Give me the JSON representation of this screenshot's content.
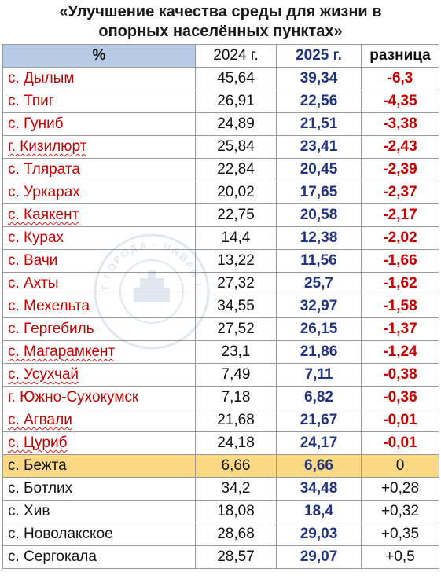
{
  "title_line1": "«Улучшение качества среды для жизни в",
  "title_line2": "опорных населённых пунктах»",
  "header": {
    "col_percent": "%",
    "col_2024": "2024 г.",
    "col_2025": "2025 г.",
    "col_diff": "разница"
  },
  "watermark_text": "ИНСТИТУТ ГОРОДА · URBAN INSTITUTE",
  "rows": [
    {
      "name": "с. Дылым",
      "v2024": "45,64",
      "v2025": "39,34",
      "diff": "-6,3"
    },
    {
      "name": "с. Тпиг",
      "v2024": "26,91",
      "v2025": "22,56",
      "diff": "-4,35"
    },
    {
      "name": "с. Гуниб",
      "v2024": "24,89",
      "v2025": "21,51",
      "diff": "-3,38"
    },
    {
      "name": "г. Кизилюрт",
      "v2024": "25,84",
      "v2025": "23,41",
      "diff": "-2,43"
    },
    {
      "name": "с. Тлярата",
      "v2024": "22,84",
      "v2025": "20,45",
      "diff": "-2,39"
    },
    {
      "name": "с. Уркарах",
      "v2024": "20,02",
      "v2025": "17,65",
      "diff": "-2,37"
    },
    {
      "name": "с. Каякент",
      "v2024": "22,75",
      "v2025": "20,58",
      "diff": "-2,17"
    },
    {
      "name": "с. Курах",
      "v2024": "14,4",
      "v2025": "12,38",
      "diff": "-2,02"
    },
    {
      "name": "с. Вачи",
      "v2024": "13,22",
      "v2025": "11,56",
      "diff": "-1,66"
    },
    {
      "name": "с. Ахты",
      "v2024": "27,32",
      "v2025": "25,7",
      "diff": "-1,62"
    },
    {
      "name": "с. Мехельта",
      "v2024": "34,55",
      "v2025": "32,97",
      "diff": "-1,58"
    },
    {
      "name": "с. Гергебиль",
      "v2024": "27,52",
      "v2025": "26,15",
      "diff": "-1,37"
    },
    {
      "name": "с. Магарамкент",
      "v2024": "23,1",
      "v2025": "21,86",
      "diff": "-1,24"
    },
    {
      "name": "с. Усухчай",
      "v2024": "7,49",
      "v2025": "7,11",
      "diff": "-0,38"
    },
    {
      "name": "г. Южно-Сухокумск",
      "v2024": "7,18",
      "v2025": "6,82",
      "diff": "-0,36"
    },
    {
      "name": "с. Агвали",
      "v2024": "21,68",
      "v2025": "21,67",
      "diff": "-0,01"
    },
    {
      "name": "с. Цуриб",
      "v2024": "24,18",
      "v2025": "24,17",
      "diff": "-0,01"
    },
    {
      "name": "с. Бежта",
      "v2024": "6,66",
      "v2025": "6,66",
      "diff": "0"
    },
    {
      "name": "с. Ботлих",
      "v2024": "34,2",
      "v2025": "34,48",
      "diff": "+0,28"
    },
    {
      "name": "с. Хив",
      "v2024": "18,08",
      "v2025": "18,4",
      "diff": "+0,32"
    },
    {
      "name": "с. Новолакское",
      "v2024": "28,68",
      "v2025": "29,03",
      "diff": "+0,35"
    },
    {
      "name": "с. Сергокала",
      "v2024": "28,57",
      "v2025": "29,07",
      "diff": "+0,5"
    }
  ]
}
